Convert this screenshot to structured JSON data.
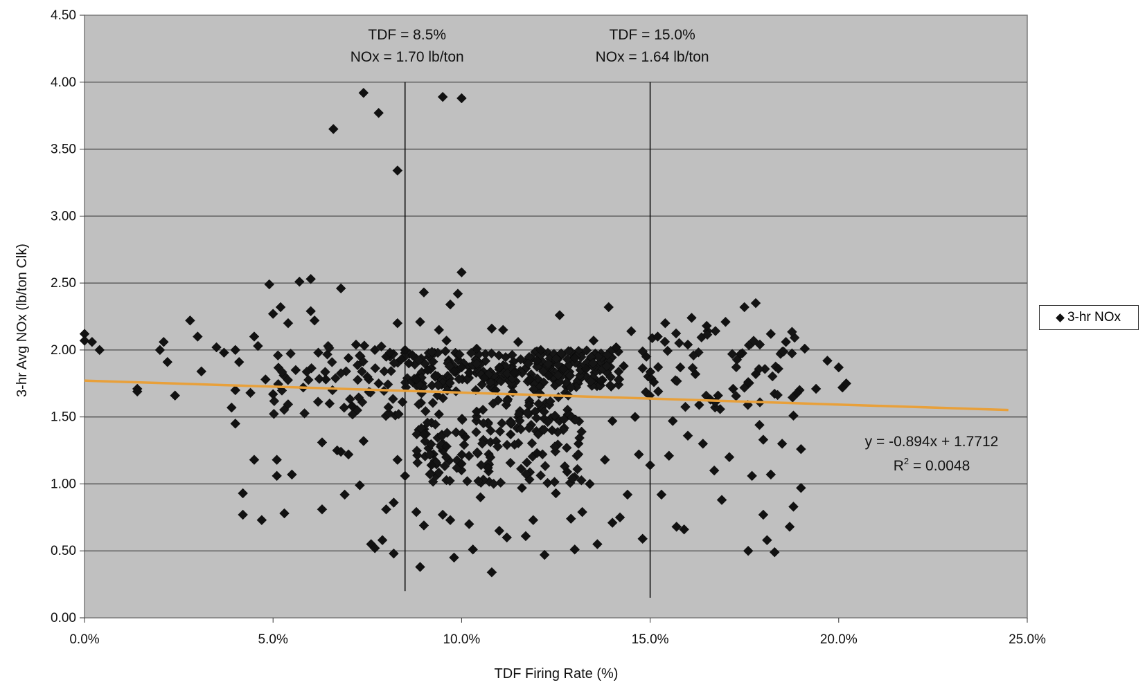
{
  "chart_data": {
    "type": "scatter",
    "xlabel": "TDF Firing Rate (%)",
    "ylabel": "3-hr Avg NOx (lb/ton Clk)",
    "xlim": [
      0,
      0.25
    ],
    "ylim": [
      0,
      4.5
    ],
    "x_ticks": [
      "0.0%",
      "5.0%",
      "10.0%",
      "15.0%",
      "20.0%",
      "25.0%"
    ],
    "y_ticks": [
      "0.00",
      "0.50",
      "1.00",
      "1.50",
      "2.00",
      "2.50",
      "3.00",
      "3.50",
      "4.00",
      "4.50"
    ],
    "grid": "horizontal",
    "legend": {
      "position": "right",
      "entries": [
        "3-hr NOx"
      ]
    },
    "series": [
      {
        "name": "3-hr NOx",
        "marker": "diamond",
        "color": "#111111",
        "points": [
          [
            0.0,
            2.12
          ],
          [
            0.0,
            2.07
          ],
          [
            0.002,
            2.06
          ],
          [
            0.004,
            2.0
          ],
          [
            0.014,
            1.71
          ],
          [
            0.014,
            1.69
          ],
          [
            0.02,
            2.0
          ],
          [
            0.021,
            2.06
          ],
          [
            0.022,
            1.91
          ],
          [
            0.024,
            1.66
          ],
          [
            0.028,
            2.22
          ],
          [
            0.03,
            2.1
          ],
          [
            0.031,
            1.84
          ],
          [
            0.035,
            2.02
          ],
          [
            0.037,
            1.98
          ],
          [
            0.039,
            1.57
          ],
          [
            0.04,
            1.7
          ],
          [
            0.04,
            1.45
          ],
          [
            0.04,
            2.0
          ],
          [
            0.041,
            1.91
          ],
          [
            0.042,
            0.93
          ],
          [
            0.042,
            0.77
          ],
          [
            0.044,
            1.68
          ],
          [
            0.045,
            2.1
          ],
          [
            0.045,
            1.18
          ],
          [
            0.046,
            2.03
          ],
          [
            0.047,
            0.73
          ],
          [
            0.048,
            1.78
          ],
          [
            0.049,
            2.49
          ],
          [
            0.05,
            2.27
          ],
          [
            0.05,
            1.67
          ],
          [
            0.051,
            1.18
          ],
          [
            0.051,
            1.06
          ],
          [
            0.052,
            2.32
          ],
          [
            0.053,
            0.78
          ],
          [
            0.054,
            2.2
          ],
          [
            0.055,
            1.07
          ],
          [
            0.056,
            1.85
          ],
          [
            0.057,
            2.51
          ],
          [
            0.058,
            1.72
          ],
          [
            0.06,
            2.53
          ],
          [
            0.06,
            2.29
          ],
          [
            0.061,
            2.22
          ],
          [
            0.062,
            1.98
          ],
          [
            0.063,
            1.31
          ],
          [
            0.063,
            0.81
          ],
          [
            0.064,
            1.78
          ],
          [
            0.065,
            1.6
          ],
          [
            0.066,
            3.65
          ],
          [
            0.067,
            1.25
          ],
          [
            0.068,
            2.46
          ],
          [
            0.068,
            1.24
          ],
          [
            0.069,
            0.92
          ],
          [
            0.07,
            1.94
          ],
          [
            0.07,
            1.22
          ],
          [
            0.071,
            1.58
          ],
          [
            0.072,
            2.04
          ],
          [
            0.073,
            0.99
          ],
          [
            0.074,
            3.92
          ],
          [
            0.074,
            1.32
          ],
          [
            0.075,
            1.8
          ],
          [
            0.076,
            0.55
          ],
          [
            0.077,
            2.0
          ],
          [
            0.077,
            0.52
          ],
          [
            0.078,
            3.77
          ],
          [
            0.078,
            1.75
          ],
          [
            0.079,
            0.58
          ],
          [
            0.08,
            1.95
          ],
          [
            0.08,
            0.81
          ],
          [
            0.081,
            1.98
          ],
          [
            0.082,
            0.48
          ],
          [
            0.082,
            0.86
          ],
          [
            0.083,
            2.2
          ],
          [
            0.083,
            3.34
          ],
          [
            0.083,
            1.18
          ],
          [
            0.084,
            1.93
          ],
          [
            0.085,
            2.0
          ],
          [
            0.085,
            1.06
          ],
          [
            0.086,
            1.9
          ],
          [
            0.087,
            1.96
          ],
          [
            0.088,
            1.78
          ],
          [
            0.088,
            0.79
          ],
          [
            0.089,
            2.21
          ],
          [
            0.089,
            0.38
          ],
          [
            0.09,
            2.43
          ],
          [
            0.09,
            1.37
          ],
          [
            0.09,
            0.69
          ],
          [
            0.091,
            1.85
          ],
          [
            0.092,
            1.14
          ],
          [
            0.093,
            1.8
          ],
          [
            0.094,
            2.15
          ],
          [
            0.094,
            1.52
          ],
          [
            0.095,
            0.77
          ],
          [
            0.095,
            3.89
          ],
          [
            0.096,
            2.07
          ],
          [
            0.096,
            1.28
          ],
          [
            0.097,
            2.34
          ],
          [
            0.097,
            0.73
          ],
          [
            0.098,
            1.84
          ],
          [
            0.098,
            0.45
          ],
          [
            0.099,
            2.42
          ],
          [
            0.1,
            3.88
          ],
          [
            0.1,
            2.58
          ],
          [
            0.1,
            1.87
          ],
          [
            0.1,
            1.15
          ],
          [
            0.101,
            1.35
          ],
          [
            0.102,
            0.7
          ],
          [
            0.102,
            1.83
          ],
          [
            0.103,
            0.51
          ],
          [
            0.104,
            2.01
          ],
          [
            0.104,
            1.54
          ],
          [
            0.105,
            0.9
          ],
          [
            0.106,
            1.79
          ],
          [
            0.107,
            1.12
          ],
          [
            0.108,
            0.34
          ],
          [
            0.108,
            2.16
          ],
          [
            0.109,
            1.7
          ],
          [
            0.11,
            0.65
          ],
          [
            0.11,
            1.87
          ],
          [
            0.111,
            2.15
          ],
          [
            0.112,
            0.6
          ],
          [
            0.113,
            1.37
          ],
          [
            0.114,
            1.83
          ],
          [
            0.115,
            2.06
          ],
          [
            0.116,
            0.97
          ],
          [
            0.117,
            0.61
          ],
          [
            0.118,
            1.78
          ],
          [
            0.119,
            0.73
          ],
          [
            0.12,
            1.92
          ],
          [
            0.12,
            1.23
          ],
          [
            0.121,
            2.0
          ],
          [
            0.122,
            0.47
          ],
          [
            0.123,
            1.81
          ],
          [
            0.124,
            1.4
          ],
          [
            0.125,
            0.93
          ],
          [
            0.126,
            2.26
          ],
          [
            0.127,
            1.86
          ],
          [
            0.128,
            1.09
          ],
          [
            0.129,
            0.74
          ],
          [
            0.13,
            1.94
          ],
          [
            0.13,
            0.51
          ],
          [
            0.131,
            1.3
          ],
          [
            0.132,
            0.79
          ],
          [
            0.133,
            1.86
          ],
          [
            0.134,
            1.0
          ],
          [
            0.135,
            2.07
          ],
          [
            0.136,
            0.55
          ],
          [
            0.137,
            1.77
          ],
          [
            0.138,
            1.18
          ],
          [
            0.139,
            2.32
          ],
          [
            0.14,
            0.71
          ],
          [
            0.14,
            1.47
          ],
          [
            0.141,
            2.02
          ],
          [
            0.142,
            0.75
          ],
          [
            0.143,
            1.88
          ],
          [
            0.144,
            0.92
          ],
          [
            0.145,
            2.14
          ],
          [
            0.146,
            1.5
          ],
          [
            0.147,
            1.22
          ],
          [
            0.148,
            0.59
          ],
          [
            0.149,
            1.95
          ],
          [
            0.15,
            1.14
          ],
          [
            0.151,
            1.76
          ],
          [
            0.152,
            2.1
          ],
          [
            0.153,
            0.92
          ],
          [
            0.154,
            2.2
          ],
          [
            0.155,
            1.21
          ],
          [
            0.156,
            1.47
          ],
          [
            0.157,
            0.68
          ],
          [
            0.158,
            1.87
          ],
          [
            0.159,
            0.66
          ],
          [
            0.16,
            2.04
          ],
          [
            0.16,
            1.36
          ],
          [
            0.161,
            2.24
          ],
          [
            0.162,
            1.82
          ],
          [
            0.163,
            1.59
          ],
          [
            0.164,
            1.3
          ],
          [
            0.165,
            2.18
          ],
          [
            0.166,
            1.63
          ],
          [
            0.167,
            1.1
          ],
          [
            0.168,
            1.66
          ],
          [
            0.169,
            0.88
          ],
          [
            0.17,
            2.21
          ],
          [
            0.171,
            1.2
          ],
          [
            0.172,
            1.71
          ],
          [
            0.174,
            1.97
          ],
          [
            0.175,
            2.32
          ],
          [
            0.176,
            1.76
          ],
          [
            0.176,
            0.5
          ],
          [
            0.177,
            1.06
          ],
          [
            0.178,
            2.35
          ],
          [
            0.178,
            1.82
          ],
          [
            0.179,
            1.44
          ],
          [
            0.18,
            0.77
          ],
          [
            0.18,
            1.33
          ],
          [
            0.181,
            0.58
          ],
          [
            0.182,
            2.12
          ],
          [
            0.182,
            1.07
          ],
          [
            0.183,
            0.49
          ],
          [
            0.184,
            1.86
          ],
          [
            0.185,
            1.3
          ],
          [
            0.186,
            2.06
          ],
          [
            0.187,
            0.68
          ],
          [
            0.188,
            1.51
          ],
          [
            0.188,
            0.83
          ],
          [
            0.189,
            1.68
          ],
          [
            0.19,
            1.26
          ],
          [
            0.19,
            0.97
          ],
          [
            0.191,
            2.01
          ],
          [
            0.194,
            1.71
          ],
          [
            0.197,
            1.92
          ],
          [
            0.2,
            1.87
          ],
          [
            0.201,
            1.72
          ],
          [
            0.202,
            1.75
          ]
        ]
      }
    ],
    "cluster_regions": [
      {
        "x": [
          0.085,
          0.142
        ],
        "y": [
          1.72,
          2.0
        ],
        "count": 260
      },
      {
        "x": [
          0.088,
          0.132
        ],
        "y": [
          1.0,
          1.72
        ],
        "count": 180
      },
      {
        "x": [
          0.05,
          0.085
        ],
        "y": [
          1.5,
          2.05
        ],
        "count": 60
      },
      {
        "x": [
          0.148,
          0.19
        ],
        "y": [
          1.55,
          2.15
        ],
        "count": 55
      }
    ],
    "vertical_lines": [
      {
        "x": 0.085,
        "y": [
          0.2,
          4.0
        ],
        "label_line1": "TDF = 8.5%",
        "label_line2": "NOx = 1.70 lb/ton"
      },
      {
        "x": 0.15,
        "y": [
          0.15,
          4.0
        ],
        "label_line1": "TDF = 15.0%",
        "label_line2": "NOx = 1.64 lb/ton"
      }
    ],
    "trendline": {
      "slope": -0.894,
      "intercept": 1.7712,
      "x_range": [
        0.0,
        0.245
      ],
      "color": "#e8a03a",
      "equation": "y = -0.894x + 1.7712",
      "r2_prefix": "R",
      "r2_sup": "2",
      "r2_suffix": " = 0.0048"
    }
  }
}
